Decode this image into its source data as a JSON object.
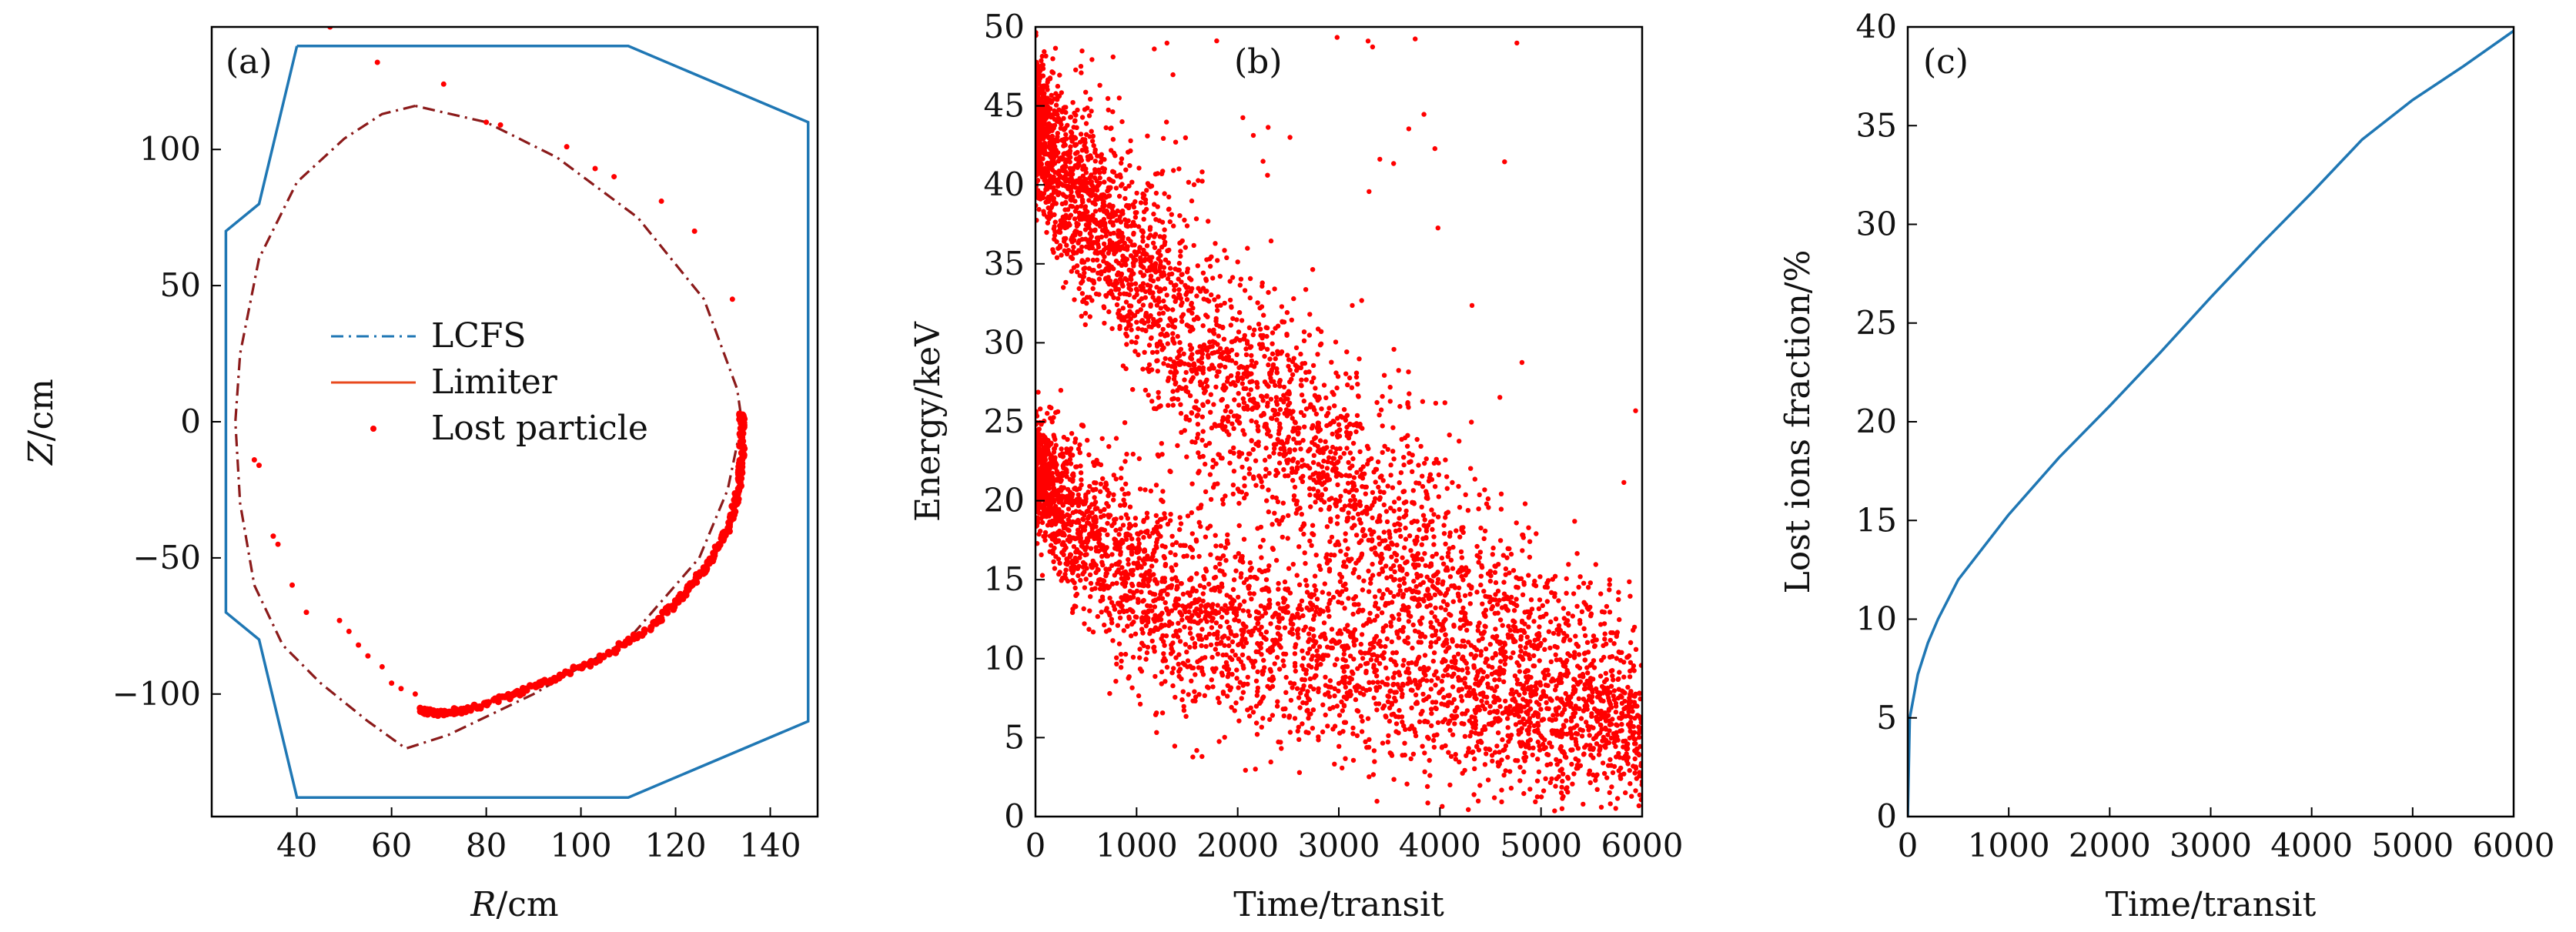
{
  "colors": {
    "limiter": "#1f77b4",
    "lcfs": "#8b1a1a",
    "lost_particle": "#ff0000",
    "lost_fraction": "#1f77b4",
    "axes": "#000000"
  },
  "chart_data": [
    {
      "type": "line+scatter",
      "panel_label": "(a)",
      "xlabel_var": "R",
      "xlabel_unit": "/cm",
      "ylabel_var": "Z",
      "ylabel_unit": "/cm",
      "xlim": [
        22,
        150
      ],
      "ylim": [
        -145,
        145
      ],
      "xticks": [
        40,
        60,
        80,
        100,
        120,
        140
      ],
      "yticks": [
        -100,
        -50,
        0,
        50,
        100
      ],
      "ytick_labels": [
        "−100",
        "−50",
        "0",
        "50",
        "100"
      ],
      "legend": {
        "placement": "center-left",
        "entries": [
          {
            "label": "LCFS",
            "style": "dash-dot",
            "color": "#1f77b4"
          },
          {
            "label": "Limiter",
            "style": "solid",
            "color": "#e8491d"
          },
          {
            "label": "Lost particle",
            "style": "dot",
            "color": "#ff0000"
          }
        ]
      },
      "series": [
        {
          "role": "limiter",
          "points": [
            [
              40,
              138
            ],
            [
              110,
              138
            ],
            [
              148,
              110
            ],
            [
              148,
              -110
            ],
            [
              110,
              -138
            ],
            [
              40,
              -138
            ],
            [
              32,
              -80
            ],
            [
              25,
              -70
            ],
            [
              25,
              70
            ],
            [
              32,
              80
            ],
            [
              40,
              138
            ]
          ]
        },
        {
          "role": "lcfs",
          "points": [
            [
              65,
              116
            ],
            [
              58,
              113
            ],
            [
              50,
              104
            ],
            [
              40,
              88
            ],
            [
              32,
              60
            ],
            [
              28,
              25
            ],
            [
              27,
              0
            ],
            [
              28,
              -30
            ],
            [
              31,
              -60
            ],
            [
              37,
              -82
            ],
            [
              45,
              -96
            ],
            [
              55,
              -110
            ],
            [
              63,
              -120
            ],
            [
              72,
              -115
            ],
            [
              90,
              -100
            ],
            [
              110,
              -80
            ],
            [
              125,
              -50
            ],
            [
              131,
              -25
            ],
            [
              134,
              0
            ],
            [
              133,
              12
            ],
            [
              126,
              45
            ],
            [
              112,
              75
            ],
            [
              95,
              97
            ],
            [
              80,
              110
            ],
            [
              65,
              116
            ]
          ]
        },
        {
          "role": "lost-particles",
          "isolated_points": [
            [
              47,
              145
            ],
            [
              57,
              132
            ],
            [
              71,
              124
            ],
            [
              80,
              110
            ],
            [
              83,
              109
            ],
            [
              97,
              101
            ],
            [
              103,
              93
            ],
            [
              107,
              90
            ],
            [
              117,
              81
            ],
            [
              124,
              70
            ],
            [
              132,
              45
            ],
            [
              31,
              -14
            ],
            [
              32,
              -16
            ],
            [
              35,
              -42
            ],
            [
              36,
              -45
            ],
            [
              39,
              -60
            ],
            [
              42,
              -70
            ],
            [
              49,
              -73
            ],
            [
              51,
              -77
            ],
            [
              53,
              -82
            ],
            [
              55,
              -86
            ],
            [
              58,
              -90
            ],
            [
              60,
              -96
            ],
            [
              62,
              -98
            ],
            [
              65,
              -100
            ]
          ],
          "dense_band": [
            [
              66,
              -106
            ],
            [
              69,
              -107
            ],
            [
              75,
              -106
            ],
            [
              85,
              -101
            ],
            [
              95,
              -94
            ],
            [
              105,
              -86
            ],
            [
              115,
              -75
            ],
            [
              122,
              -63
            ],
            [
              127,
              -52
            ],
            [
              131,
              -40
            ],
            [
              133,
              -27
            ],
            [
              134,
              -15
            ],
            [
              134,
              0
            ],
            [
              134,
              3
            ]
          ]
        }
      ]
    },
    {
      "type": "scatter",
      "panel_label": "(b)",
      "xlabel": "Time/transit",
      "ylabel": "Energy/keV",
      "xlim": [
        0,
        6000
      ],
      "ylim": [
        0,
        50
      ],
      "xticks": [
        0,
        1000,
        2000,
        3000,
        4000,
        5000,
        6000
      ],
      "yticks": [
        0,
        5,
        10,
        15,
        20,
        25,
        30,
        35,
        40,
        45,
        50
      ],
      "upper_branch": {
        "t": [
          0,
          250,
          500,
          1000,
          1500,
          2000,
          2500,
          3000,
          3500,
          4000,
          4500,
          5000,
          5500,
          6000
        ],
        "energy": [
          44,
          41,
          39,
          34.5,
          30.5,
          27.5,
          25,
          21.5,
          18.5,
          15.5,
          12.5,
          10,
          8,
          6.5
        ],
        "spread": [
          3,
          3.5,
          4,
          4.5,
          5,
          5,
          5,
          5,
          5,
          5,
          5,
          4.5,
          4.5,
          4
        ]
      },
      "lower_branch": {
        "t": [
          0,
          250,
          500,
          1000,
          1500,
          2000,
          2500,
          3000,
          3500,
          4000,
          4500,
          5000,
          5500,
          6000
        ],
        "energy": [
          22,
          20,
          18,
          15,
          13,
          12,
          11,
          10,
          9,
          8,
          7,
          6.5,
          6,
          5.5
        ],
        "spread": [
          2,
          3,
          3.5,
          4,
          4,
          4,
          4,
          4,
          4,
          4,
          3.5,
          3.5,
          3,
          3
        ]
      },
      "sample_counts": {
        "upper": 3600,
        "lower": 3000,
        "outliers": 60
      }
    },
    {
      "type": "line",
      "panel_label": "(c)",
      "xlabel": "Time/transit",
      "ylabel": "Lost ions fraction/%",
      "xlim": [
        0,
        6000
      ],
      "ylim": [
        0,
        40
      ],
      "xticks": [
        0,
        1000,
        2000,
        3000,
        4000,
        5000,
        6000
      ],
      "yticks": [
        0,
        5,
        10,
        15,
        20,
        25,
        30,
        35,
        40
      ],
      "x": [
        0,
        20,
        100,
        200,
        300,
        500,
        1000,
        1500,
        2000,
        2500,
        3000,
        3500,
        4000,
        4500,
        5000,
        5500,
        6000
      ],
      "y": [
        0,
        5,
        7.2,
        8.8,
        10,
        12,
        15.3,
        18.2,
        20.8,
        23.5,
        26.3,
        29,
        31.6,
        34.3,
        36.3,
        38,
        39.8
      ]
    }
  ]
}
